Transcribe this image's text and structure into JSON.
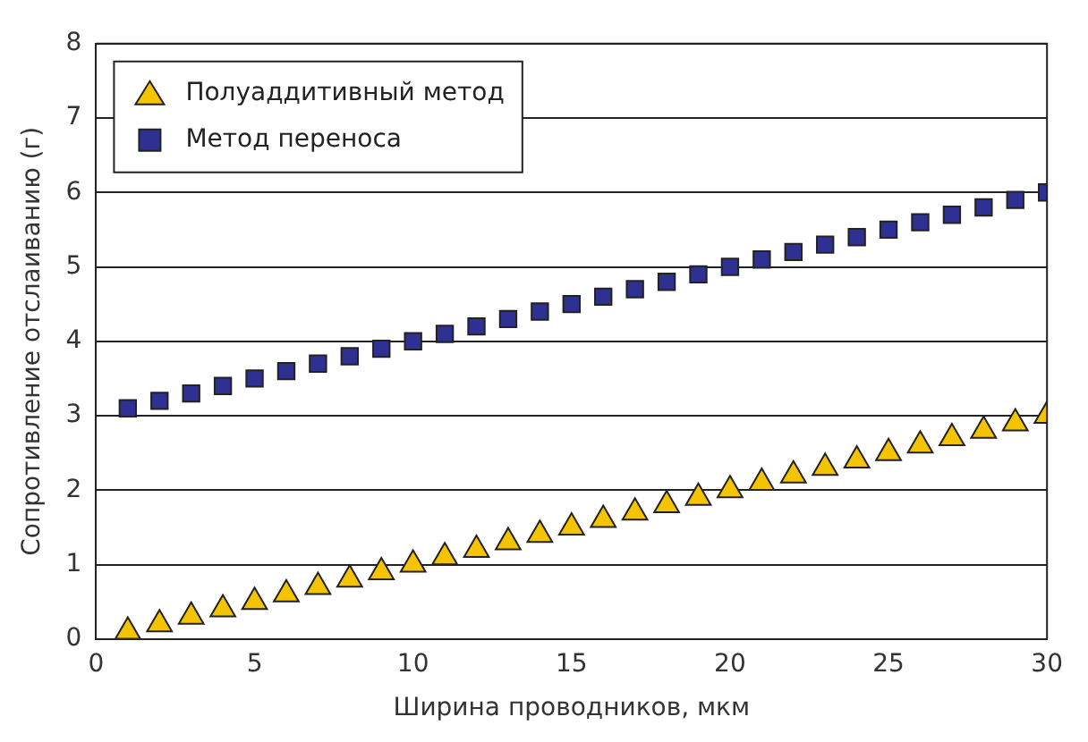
{
  "chart_data": {
    "type": "scatter",
    "xlabel": "Ширина проводников, мкм",
    "ylabel": "Сопротивление отслаиванию (г)",
    "x": [
      1,
      2,
      3,
      4,
      5,
      6,
      7,
      8,
      9,
      10,
      11,
      12,
      13,
      14,
      15,
      16,
      17,
      18,
      19,
      20,
      21,
      22,
      23,
      24,
      25,
      26,
      27,
      28,
      29,
      30
    ],
    "series": [
      {
        "name": "Полуаддитивный метод",
        "color": "#f5c400",
        "marker": "triangle",
        "values": [
          0.1,
          0.2,
          0.3,
          0.4,
          0.5,
          0.6,
          0.7,
          0.8,
          0.9,
          1.0,
          1.1,
          1.2,
          1.3,
          1.4,
          1.5,
          1.6,
          1.7,
          1.8,
          1.9,
          2.0,
          2.1,
          2.2,
          2.3,
          2.4,
          2.5,
          2.6,
          2.7,
          2.8,
          2.9,
          3.0
        ]
      },
      {
        "name": "Метод переноса",
        "color": "#2e3192",
        "marker": "square",
        "values": [
          3.1,
          3.2,
          3.3,
          3.4,
          3.5,
          3.6,
          3.7,
          3.8,
          3.9,
          4.0,
          4.1,
          4.2,
          4.3,
          4.4,
          4.5,
          4.6,
          4.7,
          4.8,
          4.9,
          5.0,
          5.1,
          5.2,
          5.3,
          5.4,
          5.5,
          5.6,
          5.7,
          5.8,
          5.9,
          6.0
        ]
      }
    ],
    "xlim": [
      0,
      30
    ],
    "xticks": [
      0,
      5,
      10,
      15,
      20,
      25,
      30
    ],
    "ylim": [
      0,
      8
    ],
    "yticks": [
      0,
      1,
      2,
      3,
      4,
      5,
      6,
      7,
      8
    ],
    "grid": "y",
    "legend": "top left"
  }
}
